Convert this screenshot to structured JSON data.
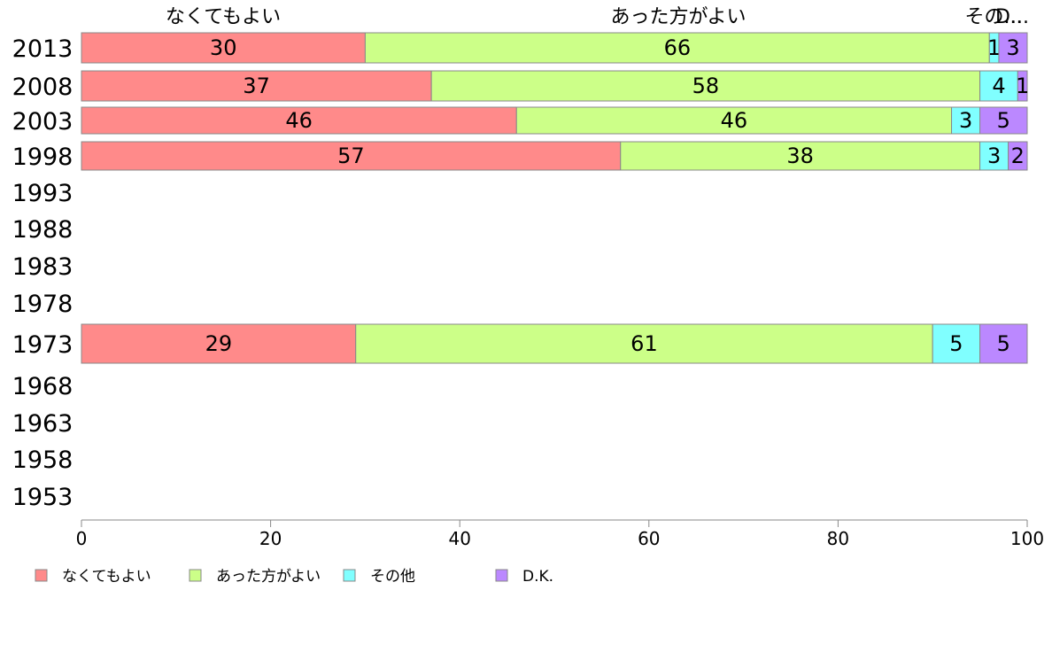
{
  "chart_data": {
    "type": "bar",
    "orientation": "horizontal-stacked-100",
    "categories": [
      "2013",
      "2008",
      "2003",
      "1998",
      "1993",
      "1988",
      "1983",
      "1978",
      "1973",
      "1968",
      "1963",
      "1958",
      "1953"
    ],
    "series": [
      {
        "name": "なくてもよい",
        "color": "#ff8a8a",
        "values": [
          30,
          37,
          46,
          57,
          null,
          null,
          null,
          null,
          29,
          null,
          null,
          null,
          null
        ]
      },
      {
        "name": "あった方がよい",
        "color": "#ccff88",
        "values": [
          66,
          58,
          46,
          38,
          null,
          null,
          null,
          null,
          61,
          null,
          null,
          null,
          null
        ]
      },
      {
        "name": "その他",
        "color": "#80ffff",
        "values": [
          1,
          4,
          3,
          3,
          null,
          null,
          null,
          null,
          5,
          null,
          null,
          null,
          null
        ]
      },
      {
        "name": "D.K.",
        "color": "#bb88ff",
        "values": [
          3,
          1,
          5,
          2,
          null,
          null,
          null,
          null,
          5,
          null,
          null,
          null,
          null
        ]
      }
    ],
    "column_headers": [
      "なくてもよい",
      "あった方がよい",
      "その...",
      "D..."
    ],
    "xlim": [
      0,
      100
    ],
    "xticks": [
      "0",
      "20",
      "40",
      "60",
      "80",
      "100"
    ],
    "legend_placement": "bottom-left",
    "grid": false
  }
}
